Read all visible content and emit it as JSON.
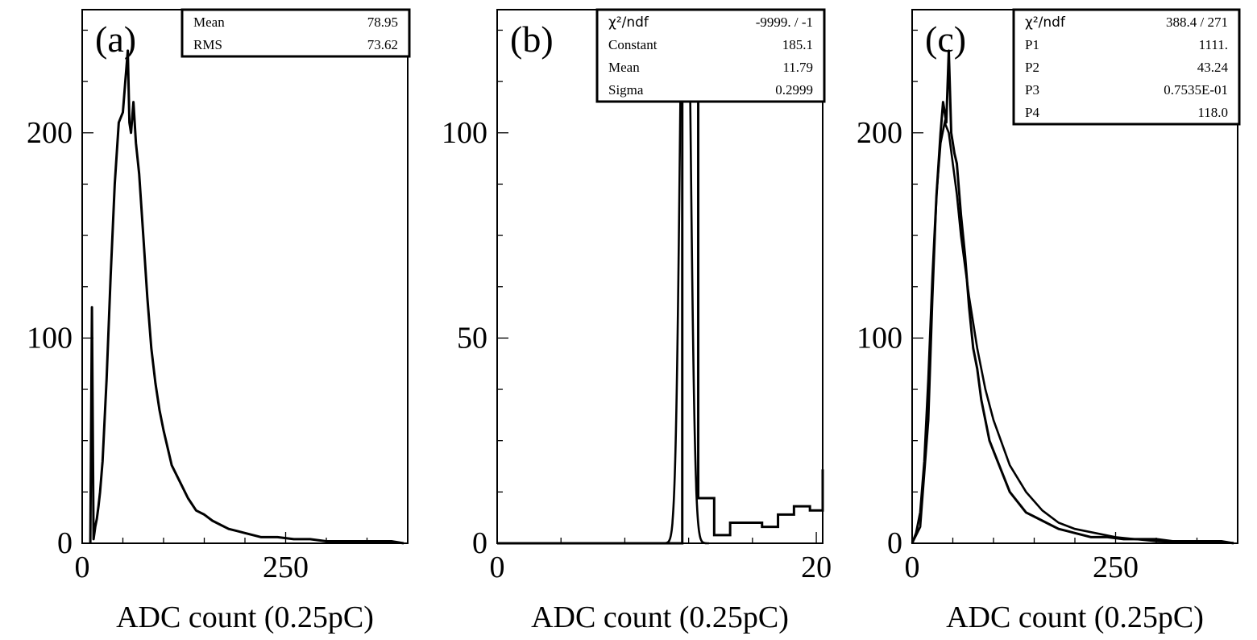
{
  "chart_data": [
    {
      "type": "histogram",
      "panel_label": "(a)",
      "xlabel": "ADC count (0.25pC)",
      "ylabel": "",
      "xlim": [
        0,
        400
      ],
      "ylim": [
        0,
        260
      ],
      "xticks": [
        {
          "v": 0,
          "t": "0"
        },
        {
          "v": 250,
          "t": "250"
        }
      ],
      "yticks": [
        {
          "v": 0,
          "t": "0"
        },
        {
          "v": 100,
          "t": "100"
        },
        {
          "v": 200,
          "t": "200"
        }
      ],
      "stats": [
        {
          "label": "Mean",
          "value": "78.95"
        },
        {
          "label": "RMS",
          "value": "73.62"
        }
      ],
      "hist": {
        "x": [
          10,
          12,
          14,
          16,
          18,
          20,
          22,
          25,
          30,
          35,
          40,
          45,
          50,
          53,
          56,
          58,
          60,
          63,
          66,
          70,
          75,
          80,
          85,
          90,
          95,
          100,
          110,
          120,
          130,
          140,
          150,
          160,
          170,
          180,
          190,
          200,
          220,
          240,
          260,
          280,
          300,
          320,
          340,
          360,
          380,
          395
        ],
        "y": [
          0,
          115,
          2,
          8,
          12,
          18,
          25,
          40,
          80,
          130,
          175,
          205,
          210,
          225,
          240,
          205,
          200,
          215,
          195,
          180,
          150,
          120,
          95,
          78,
          65,
          55,
          38,
          30,
          22,
          16,
          14,
          11,
          9,
          7,
          6,
          5,
          3,
          3,
          2,
          2,
          1,
          1,
          1,
          1,
          1,
          0
        ]
      }
    },
    {
      "type": "histogram",
      "panel_label": "(b)",
      "xlabel": "ADC count (0.25pC)",
      "ylabel": "",
      "xlim": [
        0,
        20.4
      ],
      "ylim": [
        0,
        130
      ],
      "xticks": [
        {
          "v": 0,
          "t": "0"
        },
        {
          "v": 20,
          "t": "20"
        }
      ],
      "yticks": [
        {
          "v": 0,
          "t": "0"
        },
        {
          "v": 50,
          "t": "50"
        },
        {
          "v": 100,
          "t": "100"
        }
      ],
      "stats": [
        {
          "label": "χ²/ndf",
          "value": "-9999.   /   -1"
        },
        {
          "label": "Constant",
          "value": "185.1"
        },
        {
          "label": "Mean",
          "value": "11.79"
        },
        {
          "label": "Sigma",
          "value": "0.2999"
        }
      ],
      "hist": {
        "edges": [
          0,
          10.6,
          11.6,
          12.6,
          13.6,
          14.6,
          15.6,
          16.6,
          17.6,
          18.6,
          19.6,
          20.4
        ],
        "counts": [
          0,
          0,
          117,
          11,
          2,
          5,
          5,
          4,
          7,
          9,
          8,
          18
        ]
      },
      "fit": {
        "function": "gaussian",
        "constant": 185.1,
        "mean": 11.79,
        "sigma": 0.2999
      }
    },
    {
      "type": "histogram",
      "panel_label": "(c)",
      "xlabel": "ADC count (0.25pC)",
      "ylabel": "",
      "xlim": [
        0,
        400
      ],
      "ylim": [
        0,
        260
      ],
      "xticks": [
        {
          "v": 0,
          "t": "0"
        },
        {
          "v": 250,
          "t": "250"
        }
      ],
      "yticks": [
        {
          "v": 0,
          "t": "0"
        },
        {
          "v": 100,
          "t": "100"
        },
        {
          "v": 200,
          "t": "200"
        }
      ],
      "stats": [
        {
          "label": "χ²/ndf",
          "value": "388.4   /   271"
        },
        {
          "label": "P1",
          "value": "1111."
        },
        {
          "label": "P2",
          "value": "43.24"
        },
        {
          "label": "P3",
          "value": "0.7535E-01"
        },
        {
          "label": "P4",
          "value": "118.0"
        }
      ],
      "hist": {
        "x": [
          0,
          5,
          10,
          15,
          20,
          25,
          30,
          35,
          38,
          42,
          45,
          48,
          52,
          55,
          60,
          65,
          70,
          75,
          80,
          85,
          90,
          95,
          100,
          110,
          120,
          130,
          140,
          150,
          160,
          170,
          180,
          190,
          200,
          220,
          240,
          260,
          280,
          300,
          320,
          340,
          360,
          380,
          395
        ],
        "y": [
          0,
          5,
          15,
          40,
          80,
          130,
          170,
          200,
          215,
          205,
          240,
          200,
          190,
          185,
          160,
          140,
          115,
          95,
          85,
          70,
          60,
          50,
          45,
          35,
          25,
          20,
          15,
          13,
          11,
          9,
          7,
          6,
          5,
          3,
          3,
          2,
          2,
          2,
          1,
          1,
          1,
          1,
          0
        ]
      },
      "fit": {
        "x": [
          0,
          10,
          20,
          25,
          30,
          35,
          40,
          45,
          50,
          55,
          60,
          70,
          80,
          90,
          100,
          120,
          140,
          160,
          180,
          200,
          250,
          300,
          350,
          395
        ],
        "y": [
          0,
          8,
          60,
          120,
          170,
          195,
          205,
          200,
          185,
          170,
          150,
          120,
          95,
          75,
          60,
          38,
          25,
          16,
          10,
          7,
          3,
          1,
          0.5,
          0.2
        ]
      }
    }
  ]
}
